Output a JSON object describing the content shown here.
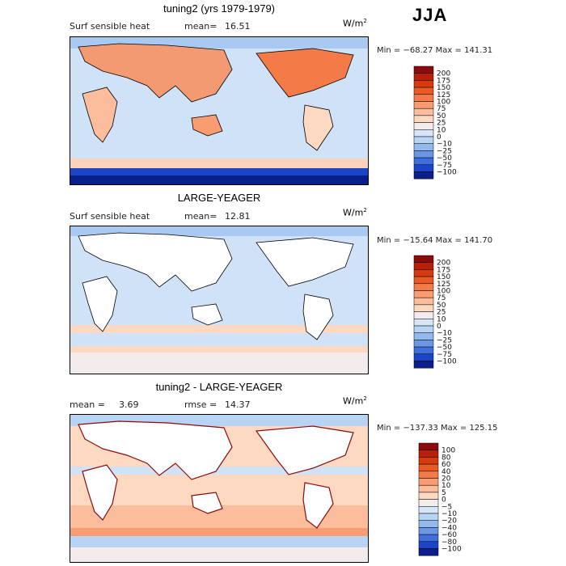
{
  "season": "JJA",
  "chart_data": [
    {
      "type": "heatmap",
      "title": "tuning2 (yrs 1979-1979)",
      "variable_label": "Surf sensible heat",
      "stat_label": "mean=",
      "stat_value": "16.51",
      "units": "W/m",
      "units_exp": "2",
      "min_max": "Min = −68.27  Max = 141.31",
      "colorbar_levels": [
        "200",
        "175",
        "150",
        "125",
        "100",
        "75",
        "50",
        "25",
        "10",
        "0",
        "−10",
        "−25",
        "−50",
        "−75",
        "−100"
      ],
      "colorbar_colors": [
        "#8b0a0a",
        "#b81e08",
        "#d63a10",
        "#ea5a25",
        "#f47a48",
        "#f99c72",
        "#fbbd9c",
        "#fcd9c0",
        "#f4ecec",
        "#d6e6f8",
        "#b8d4f4",
        "#94b9ee",
        "#6b96e4",
        "#3f6fdc",
        "#1a45c8",
        "#0a1e8c"
      ],
      "field_hint": "warm over continents, cold over southern ocean"
    },
    {
      "type": "heatmap",
      "title": "LARGE-YEAGER",
      "variable_label": "Surf sensible heat",
      "stat_label": "mean=",
      "stat_value": "12.81",
      "units": "W/m",
      "units_exp": "2",
      "min_max": "Min = −15.64  Max = 141.70",
      "colorbar_levels": [
        "200",
        "175",
        "150",
        "125",
        "100",
        "75",
        "50",
        "25",
        "10",
        "0",
        "−10",
        "−25",
        "−50",
        "−75",
        "−100"
      ],
      "colorbar_colors": [
        "#8b0a0a",
        "#b81e08",
        "#d63a10",
        "#ea5a25",
        "#f47a48",
        "#f99c72",
        "#fbbd9c",
        "#fcd9c0",
        "#f4ecec",
        "#d6e6f8",
        "#b8d4f4",
        "#94b9ee",
        "#6b96e4",
        "#3f6fdc",
        "#1a45c8",
        "#0a1e8c"
      ],
      "field_hint": "ocean-only, mostly light blue"
    },
    {
      "type": "heatmap",
      "title": "tuning2 - LARGE-YEAGER",
      "variable_label": "mean =",
      "stat_label": "rmse =",
      "mean_value": "3.69",
      "stat_value": "14.37",
      "units": "W/m",
      "units_exp": "2",
      "min_max": "Min = −137.33  Max = 125.15",
      "colorbar_levels": [
        "100",
        "80",
        "60",
        "40",
        "20",
        "10",
        "5",
        "0",
        "−5",
        "−10",
        "−20",
        "−40",
        "−60",
        "−80",
        "−100"
      ],
      "colorbar_colors": [
        "#8b0a0a",
        "#b81e08",
        "#d63a10",
        "#ea5a25",
        "#f47a48",
        "#f99c72",
        "#fbbd9c",
        "#fcd9c0",
        "#f4ecec",
        "#d6e6f8",
        "#b8d4f4",
        "#94b9ee",
        "#6b96e4",
        "#3f6fdc",
        "#1a45c8",
        "#0a1e8c"
      ],
      "field_hint": "difference, mostly light red"
    }
  ]
}
